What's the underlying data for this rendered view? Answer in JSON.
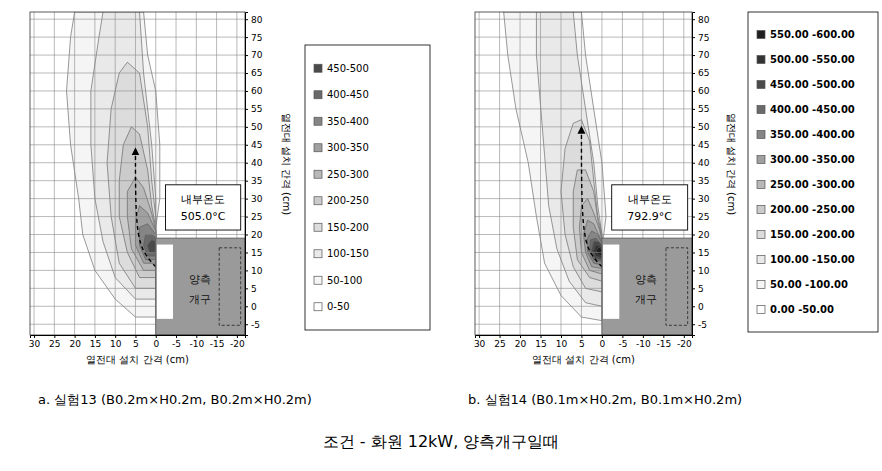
{
  "figure_caption": "조건 - 화원 12kW, 양측개구일때",
  "chart_data": [
    {
      "type": "contour",
      "caption": "a. 실험13 (B0.2m×H0.2m, B0.2m×H0.2m)",
      "x_label": "열전대 설치 간격 (cm)",
      "y_label": "열전대 설치 간격 (cm)",
      "xlim": [
        31,
        -22
      ],
      "ylim": [
        -8,
        82
      ],
      "xticks": [
        30,
        25,
        20,
        15,
        10,
        5,
        0,
        -5,
        -10,
        -15,
        -20
      ],
      "yticks": [
        -5,
        0,
        5,
        10,
        15,
        20,
        25,
        30,
        35,
        40,
        45,
        50,
        55,
        60,
        65,
        70,
        75,
        80
      ],
      "grid": true,
      "annotations": [
        "내부온도",
        "505.0°C"
      ],
      "opening_label": [
        "양측",
        "개구"
      ],
      "arrow": [
        [
          0,
          11
        ],
        [
          2.5,
          14
        ],
        [
          5,
          20
        ],
        [
          5,
          44
        ]
      ],
      "bands": [
        {
          "label": "450-500",
          "range": [
            450,
            500
          ],
          "color": "#4a4a4a",
          "region": [
            [
              0,
              15
            ],
            [
              1.5,
              15
            ],
            [
              2,
              17
            ],
            [
              1,
              18.5
            ],
            [
              0,
              18
            ]
          ]
        },
        {
          "label": "400-450",
          "range": [
            400,
            450
          ],
          "color": "#6a6a6a",
          "region": [
            [
              0,
              14
            ],
            [
              2,
              14
            ],
            [
              3,
              17
            ],
            [
              2.5,
              20
            ],
            [
              1,
              20
            ],
            [
              0,
              19
            ]
          ]
        },
        {
          "label": "350-400",
          "range": [
            350,
            400
          ],
          "color": "#858585",
          "region": [
            [
              0,
              13
            ],
            [
              2.5,
              13
            ],
            [
              4,
              17
            ],
            [
              4,
              22
            ],
            [
              2,
              23
            ],
            [
              0,
              20
            ]
          ]
        },
        {
          "label": "300-350",
          "range": [
            300,
            350
          ],
          "color": "#a0a0a0",
          "region": [
            [
              0,
              12
            ],
            [
              3,
              12
            ],
            [
              5,
              17
            ],
            [
              5,
              24
            ],
            [
              4,
              28
            ],
            [
              2,
              26
            ],
            [
              0,
              21
            ]
          ]
        },
        {
          "label": "250-300",
          "range": [
            250,
            300
          ],
          "color": "#b8b8b8",
          "region": [
            [
              0,
              10
            ],
            [
              3,
              10
            ],
            [
              6,
              16
            ],
            [
              7,
              25
            ],
            [
              7,
              32
            ],
            [
              5,
              36
            ],
            [
              3,
              33
            ],
            [
              1,
              26
            ],
            [
              0,
              21
            ]
          ]
        },
        {
          "label": "200-250",
          "range": [
            200,
            250
          ],
          "color": "#cbcbcb",
          "region": [
            [
              0,
              8
            ],
            [
              4,
              8
            ],
            [
              7,
              15
            ],
            [
              9,
              25
            ],
            [
              9,
              35
            ],
            [
              8,
              45
            ],
            [
              6,
              50
            ],
            [
              4,
              48
            ],
            [
              2,
              38
            ],
            [
              1,
              28
            ],
            [
              0,
              22
            ]
          ]
        },
        {
          "label": "150-200",
          "range": [
            150,
            200
          ],
          "color": "#dcdcdc",
          "region": [
            [
              0,
              5
            ],
            [
              5,
              5
            ],
            [
              9,
              12
            ],
            [
              11,
              25
            ],
            [
              12,
              40
            ],
            [
              11,
              55
            ],
            [
              9,
              65
            ],
            [
              7,
              68
            ],
            [
              4,
              65
            ],
            [
              2,
              50
            ],
            [
              1,
              35
            ],
            [
              0,
              25
            ]
          ]
        },
        {
          "label": "100-150",
          "range": [
            100,
            150
          ],
          "color": "#e9e9e9",
          "region": [
            [
              0,
              2
            ],
            [
              5,
              2
            ],
            [
              10,
              8
            ],
            [
              13,
              18
            ],
            [
              15,
              30
            ],
            [
              16,
              45
            ],
            [
              16,
              60
            ],
            [
              14,
              75
            ],
            [
              13,
              82
            ],
            [
              4,
              82
            ],
            [
              3,
              65
            ],
            [
              1,
              45
            ],
            [
              0,
              30
            ],
            [
              0,
              22
            ]
          ]
        },
        {
          "label": "50-100",
          "range": [
            50,
            100
          ],
          "color": "#f5f5f5",
          "region": [
            [
              0,
              -3
            ],
            [
              5,
              -3
            ],
            [
              10,
              2
            ],
            [
              15,
              10
            ],
            [
              18,
              20
            ],
            [
              19,
              30
            ],
            [
              21,
              45
            ],
            [
              22,
              60
            ],
            [
              21,
              75
            ],
            [
              20,
              82
            ],
            [
              3,
              82
            ],
            [
              2,
              70
            ],
            [
              0,
              60
            ],
            [
              -1,
              45
            ],
            [
              -1,
              30
            ],
            [
              0,
              22
            ]
          ]
        },
        {
          "label": "0-50",
          "range": [
            0,
            50
          ],
          "color": "#ffffff",
          "region": null
        }
      ]
    },
    {
      "type": "contour",
      "caption": "b. 실험14 (B0.1m×H0.2m, B0.1m×H0.2m)",
      "x_label": "열전대 설치 간격 (cm)",
      "y_label": "열전대 설치 간격 (cm)",
      "xlim": [
        31,
        -22
      ],
      "ylim": [
        -8,
        82
      ],
      "xticks": [
        30,
        25,
        20,
        15,
        10,
        5,
        0,
        -5,
        -10,
        -15,
        -20
      ],
      "yticks": [
        -5,
        0,
        5,
        10,
        15,
        20,
        25,
        30,
        35,
        40,
        45,
        50,
        55,
        60,
        65,
        70,
        75,
        80
      ],
      "grid": true,
      "annotations": [
        "내부온도",
        "792.9°C"
      ],
      "opening_label": [
        "양측",
        "개구"
      ],
      "arrow": [
        [
          0,
          11
        ],
        [
          2.5,
          14
        ],
        [
          5,
          20
        ],
        [
          5,
          50
        ]
      ],
      "bands": [
        {
          "label": "550.00 -600.00",
          "range": [
            550,
            600
          ],
          "color": "#1e1e1e",
          "region": [
            [
              0,
              14
            ],
            [
              1,
              14.5
            ],
            [
              1.4,
              15.5
            ],
            [
              0.8,
              16.5
            ],
            [
              0,
              16
            ]
          ]
        },
        {
          "label": "500.00 -550.00",
          "range": [
            500,
            550
          ],
          "color": "#333333",
          "region": [
            [
              0,
              13.5
            ],
            [
              1.5,
              14
            ],
            [
              2,
              15.5
            ],
            [
              1.5,
              17.2
            ],
            [
              0,
              16.5
            ]
          ]
        },
        {
          "label": "450.00 -500.00",
          "range": [
            450,
            500
          ],
          "color": "#4a4a4a",
          "region": [
            [
              0,
              13
            ],
            [
              1.8,
              13.5
            ],
            [
              2.5,
              15.5
            ],
            [
              2,
              18
            ],
            [
              0.8,
              18
            ],
            [
              0,
              16.8
            ]
          ]
        },
        {
          "label": "400.00 -450.00",
          "range": [
            400,
            450
          ],
          "color": "#6a6a6a",
          "region": [
            [
              0,
              12.5
            ],
            [
              2,
              13
            ],
            [
              3,
              15.5
            ],
            [
              2.8,
              18.5
            ],
            [
              1.5,
              19
            ],
            [
              0,
              17
            ]
          ]
        },
        {
          "label": "350.00 -400.00",
          "range": [
            350,
            400
          ],
          "color": "#858585",
          "region": [
            [
              0,
              11.5
            ],
            [
              2,
              12
            ],
            [
              3.5,
              15
            ],
            [
              3.5,
              19
            ],
            [
              2.5,
              21
            ],
            [
              1,
              20
            ],
            [
              0,
              17.5
            ]
          ]
        },
        {
          "label": "300.00 -350.00",
          "range": [
            300,
            350
          ],
          "color": "#a0a0a0",
          "region": [
            [
              0,
              10.5
            ],
            [
              2.5,
              11
            ],
            [
              4,
              15
            ],
            [
              4.5,
              20
            ],
            [
              3.5,
              24
            ],
            [
              2,
              23
            ],
            [
              0,
              18
            ]
          ]
        },
        {
          "label": "250.00 -300.00",
          "range": [
            250,
            300
          ],
          "color": "#b8b8b8",
          "region": [
            [
              0,
              9
            ],
            [
              3,
              10
            ],
            [
              5,
              15
            ],
            [
              5.5,
              22
            ],
            [
              5,
              28
            ],
            [
              3.5,
              30
            ],
            [
              2,
              26
            ],
            [
              0.5,
              21
            ],
            [
              0,
              18
            ]
          ]
        },
        {
          "label": "200.00 -250.00",
          "range": [
            200,
            250
          ],
          "color": "#cbcbcb",
          "region": [
            [
              0,
              7
            ],
            [
              3,
              8
            ],
            [
              6,
              13
            ],
            [
              7,
              22
            ],
            [
              7,
              32
            ],
            [
              6,
              38
            ],
            [
              4,
              38
            ],
            [
              2,
              32
            ],
            [
              1,
              24
            ],
            [
              0,
              19
            ]
          ]
        },
        {
          "label": "150.00 -200.00",
          "range": [
            150,
            200
          ],
          "color": "#dcdcdc",
          "region": [
            [
              0,
              4
            ],
            [
              4,
              5
            ],
            [
              7,
              11
            ],
            [
              9,
              20
            ],
            [
              10,
              32
            ],
            [
              9,
              44
            ],
            [
              7,
              51
            ],
            [
              5,
              52
            ],
            [
              3,
              46
            ],
            [
              2,
              35
            ],
            [
              1,
              25
            ],
            [
              0,
              20
            ]
          ]
        },
        {
          "label": "100.00 -150.00",
          "range": [
            100,
            150
          ],
          "color": "#e9e9e9",
          "region": [
            [
              0,
              0
            ],
            [
              4,
              1
            ],
            [
              8,
              7
            ],
            [
              11,
              16
            ],
            [
              13,
              28
            ],
            [
              14,
              42
            ],
            [
              15,
              56
            ],
            [
              16,
              70
            ],
            [
              16,
              82
            ],
            [
              7,
              82
            ],
            [
              6,
              70
            ],
            [
              4,
              55
            ],
            [
              2,
              40
            ],
            [
              1,
              28
            ],
            [
              0,
              20
            ]
          ]
        },
        {
          "label": "50.00 -100.00",
          "range": [
            50,
            100
          ],
          "color": "#f5f5f5",
          "region": [
            [
              0,
              -4
            ],
            [
              5,
              -3
            ],
            [
              10,
              3
            ],
            [
              14,
              12
            ],
            [
              16,
              25
            ],
            [
              18,
              40
            ],
            [
              21,
              55
            ],
            [
              23,
              70
            ],
            [
              24,
              82
            ],
            [
              5,
              82
            ],
            [
              4,
              70
            ],
            [
              2,
              55
            ],
            [
              0,
              40
            ],
            [
              -1,
              25
            ],
            [
              0,
              16
            ]
          ]
        },
        {
          "label": "0.00 -50.00",
          "range": [
            0,
            50
          ],
          "color": "#ffffff",
          "region": null
        }
      ]
    }
  ]
}
